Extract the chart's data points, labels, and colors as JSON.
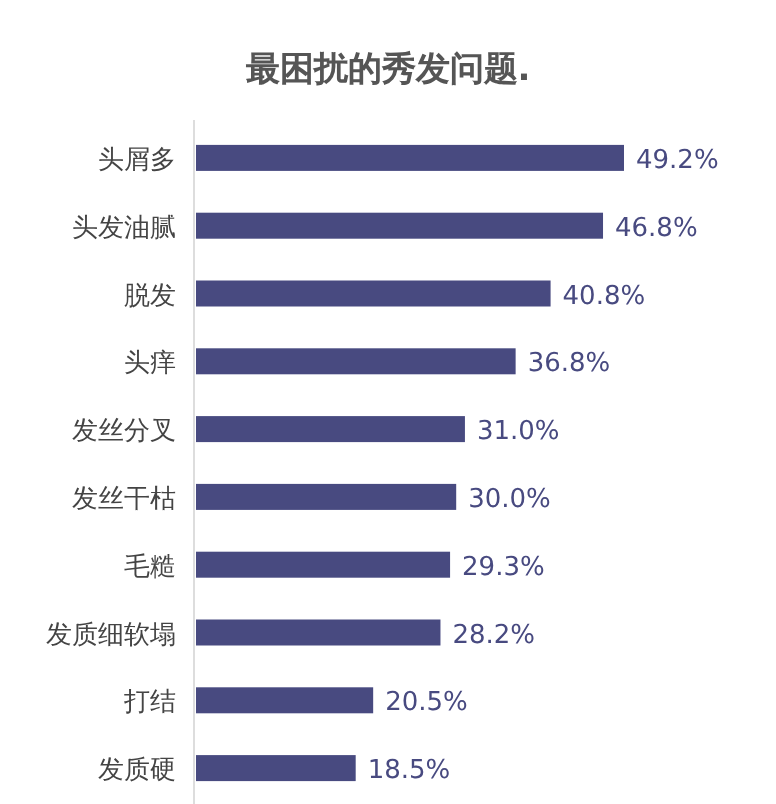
{
  "chart_data": {
    "type": "bar",
    "orientation": "horizontal",
    "title": "最困扰的秀发问题.",
    "categories": [
      "头屑多",
      "头发油腻",
      "脱发",
      "头痒",
      "发丝分叉",
      "发丝干枯",
      "毛糙",
      "发质细软塌",
      "打结",
      "发质硬"
    ],
    "values": [
      49.2,
      46.8,
      40.8,
      36.8,
      31.0,
      30.0,
      29.3,
      28.2,
      20.5,
      18.5
    ],
    "value_labels": [
      "49.2%",
      "46.8%",
      "40.8%",
      "36.8%",
      "31.0%",
      "30.0%",
      "29.3%",
      "28.2%",
      "20.5%",
      "18.5%"
    ],
    "color": "#484a80"
  }
}
